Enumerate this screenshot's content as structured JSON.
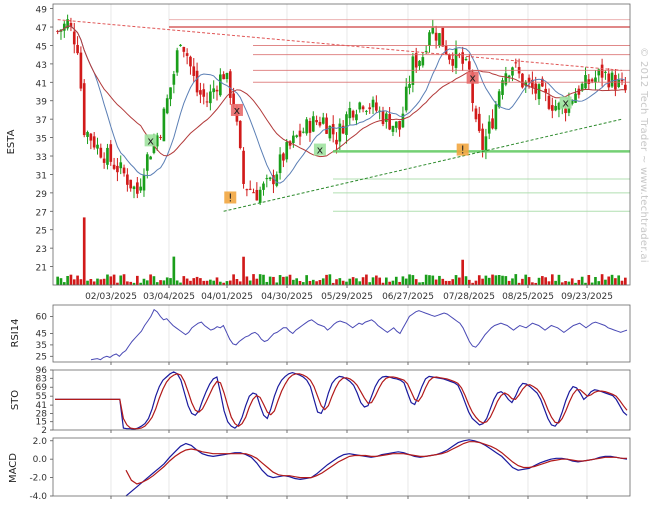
{
  "watermark": "© 2012 Tech Trader ~ www.techtrader.ai",
  "colors": {
    "up": "#1a9e1a",
    "down": "#d11a1a",
    "ma_fast": "#5b7fb5",
    "ma_slow": "#b23a3a",
    "rsi": "#4a4ab5",
    "sto_k": "#1a1a9e",
    "sto_d": "#b21a1a",
    "macd": "#1a1a9e",
    "signal": "#b21a1a"
  },
  "chart_data": [
    {
      "type": "candlestick",
      "ylabel": "ESTA",
      "ylim": [
        19,
        49.5
      ],
      "y_ticks": [
        21,
        23,
        25,
        27,
        29,
        31,
        33,
        35,
        37,
        39,
        41,
        43,
        45,
        47,
        49
      ],
      "x_ticks": [
        "02/03/2025",
        "03/04/2025",
        "04/01/2025",
        "04/30/2025",
        "05/29/2025",
        "06/27/2025",
        "07/28/2025",
        "08/25/2025",
        "09/23/2025"
      ],
      "resistance_levels": [
        47.8,
        47.0,
        45.0,
        44.0,
        42.3,
        41.0
      ],
      "support_levels": [
        33.5,
        30.5,
        29.0,
        27.0
      ],
      "trendlines": [
        {
          "kind": "resistance",
          "from": [
            0,
            47.8
          ],
          "to": [
            170,
            42.3
          ]
        },
        {
          "kind": "support",
          "from": [
            50,
            27.0
          ],
          "to": [
            170,
            37.0
          ]
        }
      ],
      "markers": [
        {
          "label": "x",
          "kind": "buy",
          "bar": 28,
          "value": 34.7
        },
        {
          "label": "x",
          "kind": "sell",
          "bar": 54,
          "value": 38.0
        },
        {
          "label": "!",
          "kind": "alert",
          "bar": 52,
          "value": 28.5
        },
        {
          "label": "x",
          "kind": "buy",
          "bar": 79,
          "value": 33.7
        },
        {
          "label": "x",
          "kind": "sell",
          "bar": 125,
          "value": 41.5
        },
        {
          "label": "!",
          "kind": "alert",
          "bar": 122,
          "value": 33.7
        },
        {
          "label": "x",
          "kind": "buy",
          "bar": 153,
          "value": 38.8
        }
      ]
    },
    {
      "type": "line",
      "ylabel": "RSI14",
      "ylim": [
        20,
        70
      ],
      "y_ticks": [
        60,
        45,
        35,
        25
      ],
      "series": [
        {
          "values": [
            22,
            22.5,
            23,
            22,
            24,
            25,
            24,
            26,
            27,
            25,
            28,
            30,
            34,
            38,
            41,
            44,
            47,
            52,
            56,
            60,
            66,
            64,
            60,
            57,
            58,
            55,
            52,
            50,
            48,
            46,
            44,
            46,
            50,
            52,
            54,
            55,
            52,
            50,
            48,
            49,
            51,
            50,
            52,
            46,
            40,
            36,
            35,
            38,
            40,
            42,
            43,
            45,
            46,
            44,
            40,
            38,
            39,
            42,
            45,
            46,
            48,
            50,
            50,
            47,
            45,
            48,
            50,
            52,
            54,
            56,
            57,
            55,
            53,
            52,
            51,
            48,
            50,
            53,
            55,
            56,
            55,
            54,
            52,
            50,
            52,
            54,
            53,
            55,
            56,
            57,
            55,
            52,
            50,
            48,
            46,
            48,
            50,
            47,
            45,
            50,
            55,
            60,
            62,
            64,
            65,
            64,
            63,
            62,
            61,
            60,
            61,
            62,
            63,
            62,
            60,
            58,
            56,
            54,
            50,
            44,
            38,
            34,
            33,
            36,
            40,
            44,
            47,
            50,
            52,
            53,
            54,
            53,
            52,
            50,
            48,
            50,
            52,
            51,
            50,
            52,
            54,
            53,
            52,
            50,
            48,
            50,
            52,
            51,
            50,
            48,
            46,
            48,
            50,
            52,
            53,
            54,
            52,
            50,
            52,
            54,
            55,
            54,
            53,
            52,
            50,
            49,
            48,
            47,
            46,
            47,
            48
          ]
        }
      ]
    },
    {
      "type": "line",
      "ylabel": "STO",
      "ylim": [
        2,
        96
      ],
      "y_ticks": [
        96,
        83,
        69,
        55,
        41,
        28,
        15,
        2
      ],
      "series": [
        {
          "values": [
            50,
            50,
            50,
            50,
            50,
            50,
            50,
            50,
            50,
            50,
            50,
            50,
            50,
            50,
            50,
            50,
            50,
            50,
            50,
            5,
            4,
            4,
            3,
            5,
            8,
            12,
            20,
            35,
            55,
            70,
            80,
            85,
            90,
            93,
            90,
            80,
            60,
            40,
            28,
            25,
            32,
            48,
            62,
            74,
            82,
            85,
            60,
            32,
            15,
            8,
            5,
            10,
            22,
            40,
            55,
            60,
            58,
            40,
            25,
            20,
            35,
            55,
            70,
            80,
            86,
            90,
            92,
            90,
            88,
            85,
            80,
            70,
            50,
            30,
            28,
            40,
            60,
            75,
            82,
            86,
            85,
            82,
            78,
            72,
            60,
            45,
            38,
            40,
            55,
            70,
            80,
            85,
            86,
            85,
            83,
            82,
            80,
            76,
            60,
            45,
            42,
            55,
            70,
            82,
            86,
            85,
            84,
            83,
            82,
            80,
            78,
            76,
            72,
            60,
            45,
            30,
            20,
            15,
            10,
            12,
            20,
            35,
            50,
            60,
            62,
            58,
            50,
            45,
            55,
            68,
            75,
            74,
            70,
            65,
            60,
            50,
            35,
            20,
            10,
            8,
            15,
            30,
            48,
            62,
            70,
            68,
            60,
            50,
            55,
            62,
            65,
            64,
            62,
            60,
            58,
            56,
            50,
            40,
            30,
            25
          ]
        },
        {
          "values": [
            50,
            50,
            50,
            50,
            50,
            50,
            50,
            50,
            50,
            50,
            50,
            50,
            50,
            50,
            50,
            50,
            50,
            50,
            50,
            20,
            10,
            5,
            4,
            4,
            5,
            8,
            14,
            22,
            35,
            52,
            66,
            77,
            84,
            88,
            90,
            88,
            78,
            62,
            45,
            33,
            30,
            35,
            46,
            58,
            70,
            78,
            76,
            60,
            40,
            22,
            12,
            8,
            12,
            22,
            38,
            50,
            56,
            53,
            42,
            30,
            26,
            32,
            48,
            63,
            74,
            83,
            88,
            90,
            90,
            88,
            85,
            80,
            70,
            55,
            40,
            34,
            40,
            55,
            68,
            78,
            83,
            84,
            82,
            78,
            72,
            62,
            52,
            44,
            45,
            55,
            67,
            77,
            83,
            85,
            85,
            84,
            82,
            80,
            74,
            62,
            50,
            47,
            55,
            68,
            79,
            84,
            85,
            84,
            83,
            82,
            80,
            78,
            75,
            68,
            56,
            42,
            30,
            22,
            16,
            13,
            15,
            22,
            34,
            47,
            56,
            60,
            57,
            51,
            50,
            57,
            66,
            72,
            73,
            70,
            66,
            59,
            48,
            34,
            22,
            14,
            13,
            20,
            32,
            46,
            58,
            65,
            65,
            60,
            55,
            57,
            61,
            63,
            63,
            62,
            60,
            58,
            55,
            48,
            40,
            33
          ]
        }
      ]
    },
    {
      "type": "line",
      "ylabel": "MACD",
      "ylim": [
        -4.0,
        2.3
      ],
      "y_ticks": [
        2.0,
        0.0,
        -2.0,
        -4.0
      ],
      "y_tick_labels": [
        "2.0",
        "0.0",
        "-2.0",
        "-4.0"
      ],
      "series": [
        {
          "values": [
            -4.0,
            -3.5,
            -3.0,
            -2.5,
            -2.0,
            -1.5,
            -1.0,
            -0.5,
            0.2,
            0.8,
            1.4,
            1.7,
            1.5,
            1.0,
            0.6,
            0.4,
            0.3,
            0.4,
            0.5,
            0.6,
            0.7,
            0.7,
            0.5,
            0.2,
            -0.4,
            -1.2,
            -1.8,
            -2.0,
            -1.9,
            -1.8,
            -1.9,
            -2.1,
            -2.2,
            -2.1,
            -2.0,
            -1.6,
            -1.1,
            -0.6,
            -0.2,
            0.2,
            0.5,
            0.6,
            0.5,
            0.4,
            0.3,
            0.2,
            0.3,
            0.5,
            0.6,
            0.7,
            0.8,
            0.7,
            0.5,
            0.3,
            0.2,
            0.3,
            0.4,
            0.5,
            0.7,
            1.0,
            1.4,
            1.8,
            2.0,
            2.1,
            2.0,
            1.8,
            1.5,
            1.1,
            0.7,
            0.3,
            -0.3,
            -0.9,
            -1.2,
            -1.1,
            -1.0,
            -0.7,
            -0.4,
            -0.2,
            0.0,
            0.1,
            0.1,
            0.0,
            -0.2,
            -0.3,
            -0.2,
            -0.1,
            0.0,
            0.2,
            0.3,
            0.3,
            0.2,
            0.1,
            0.0
          ]
        },
        {
          "values": [
            -1.2,
            -2.3,
            -2.7,
            -2.5,
            -2.2,
            -1.8,
            -1.3,
            -0.8,
            -0.2,
            0.3,
            0.7,
            1.0,
            1.1,
            1.0,
            0.8,
            0.7,
            0.6,
            0.6,
            0.6,
            0.6,
            0.6,
            0.6,
            0.6,
            0.4,
            0.1,
            -0.4,
            -0.9,
            -1.4,
            -1.7,
            -1.8,
            -1.8,
            -1.9,
            -2.0,
            -2.0,
            -2.0,
            -1.8,
            -1.5,
            -1.1,
            -0.7,
            -0.3,
            0.0,
            0.3,
            0.4,
            0.4,
            0.4,
            0.3,
            0.3,
            0.4,
            0.5,
            0.6,
            0.6,
            0.6,
            0.5,
            0.4,
            0.3,
            0.3,
            0.4,
            0.5,
            0.6,
            0.8,
            1.1,
            1.4,
            1.7,
            1.9,
            1.9,
            1.8,
            1.6,
            1.4,
            1.1,
            0.7,
            0.2,
            -0.3,
            -0.7,
            -0.9,
            -0.9,
            -0.8,
            -0.6,
            -0.4,
            -0.2,
            -0.1,
            0.0,
            0.0,
            -0.1,
            -0.2,
            -0.2,
            -0.1,
            0.0,
            0.1,
            0.2,
            0.2,
            0.2,
            0.1,
            0.1
          ]
        }
      ]
    }
  ]
}
